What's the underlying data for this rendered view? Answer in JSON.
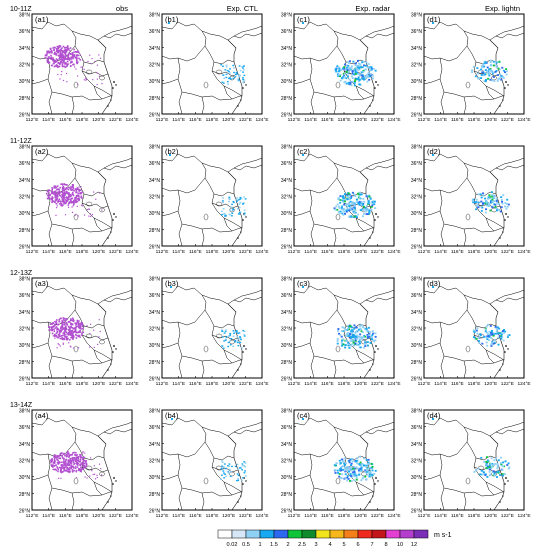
{
  "columns": [
    {
      "title": "obs"
    },
    {
      "title": "Exp. CTL"
    },
    {
      "title": "Exp. radar"
    },
    {
      "title": "Exp. lightn"
    }
  ],
  "rows": [
    {
      "time": "10-11Z",
      "labels": [
        "(a1)",
        "(b1)",
        "(c1)",
        "(d1)"
      ]
    },
    {
      "time": "11-12Z",
      "labels": [
        "(a2)",
        "(b2)",
        "(c2)",
        "(d2)"
      ]
    },
    {
      "time": "12-13Z",
      "labels": [
        "(a3)",
        "(b3)",
        "(c3)",
        "(d3)"
      ]
    },
    {
      "time": "13-14Z",
      "labels": [
        "(a4)",
        "(b4)",
        "(c4)",
        "(d4)"
      ]
    }
  ],
  "lat_ticks": [
    "38°N",
    "36°N",
    "34°N",
    "32°N",
    "30°N",
    "28°N",
    "26°N"
  ],
  "lon_ticks": [
    "112°E",
    "114°E",
    "116°E",
    "118°E",
    "120°E",
    "122°E",
    "124°E"
  ],
  "colorbar": {
    "labels": [
      "0.02",
      "0.5",
      "1",
      "1.5",
      "2",
      "2.5",
      "3",
      "4",
      "5",
      "6",
      "7",
      "8",
      "10",
      "12"
    ],
    "colors": [
      "#ffffff",
      "#d6e8f8",
      "#8fd0f5",
      "#19a9f0",
      "#2d68f0",
      "#10c43a",
      "#0f8a2d",
      "#f2e41c",
      "#f6b71a",
      "#f57f1a",
      "#ef2b1e",
      "#c2151c",
      "#e33fd3",
      "#b43fce",
      "#7a2fb6"
    ],
    "unit": "m s-1"
  }
}
